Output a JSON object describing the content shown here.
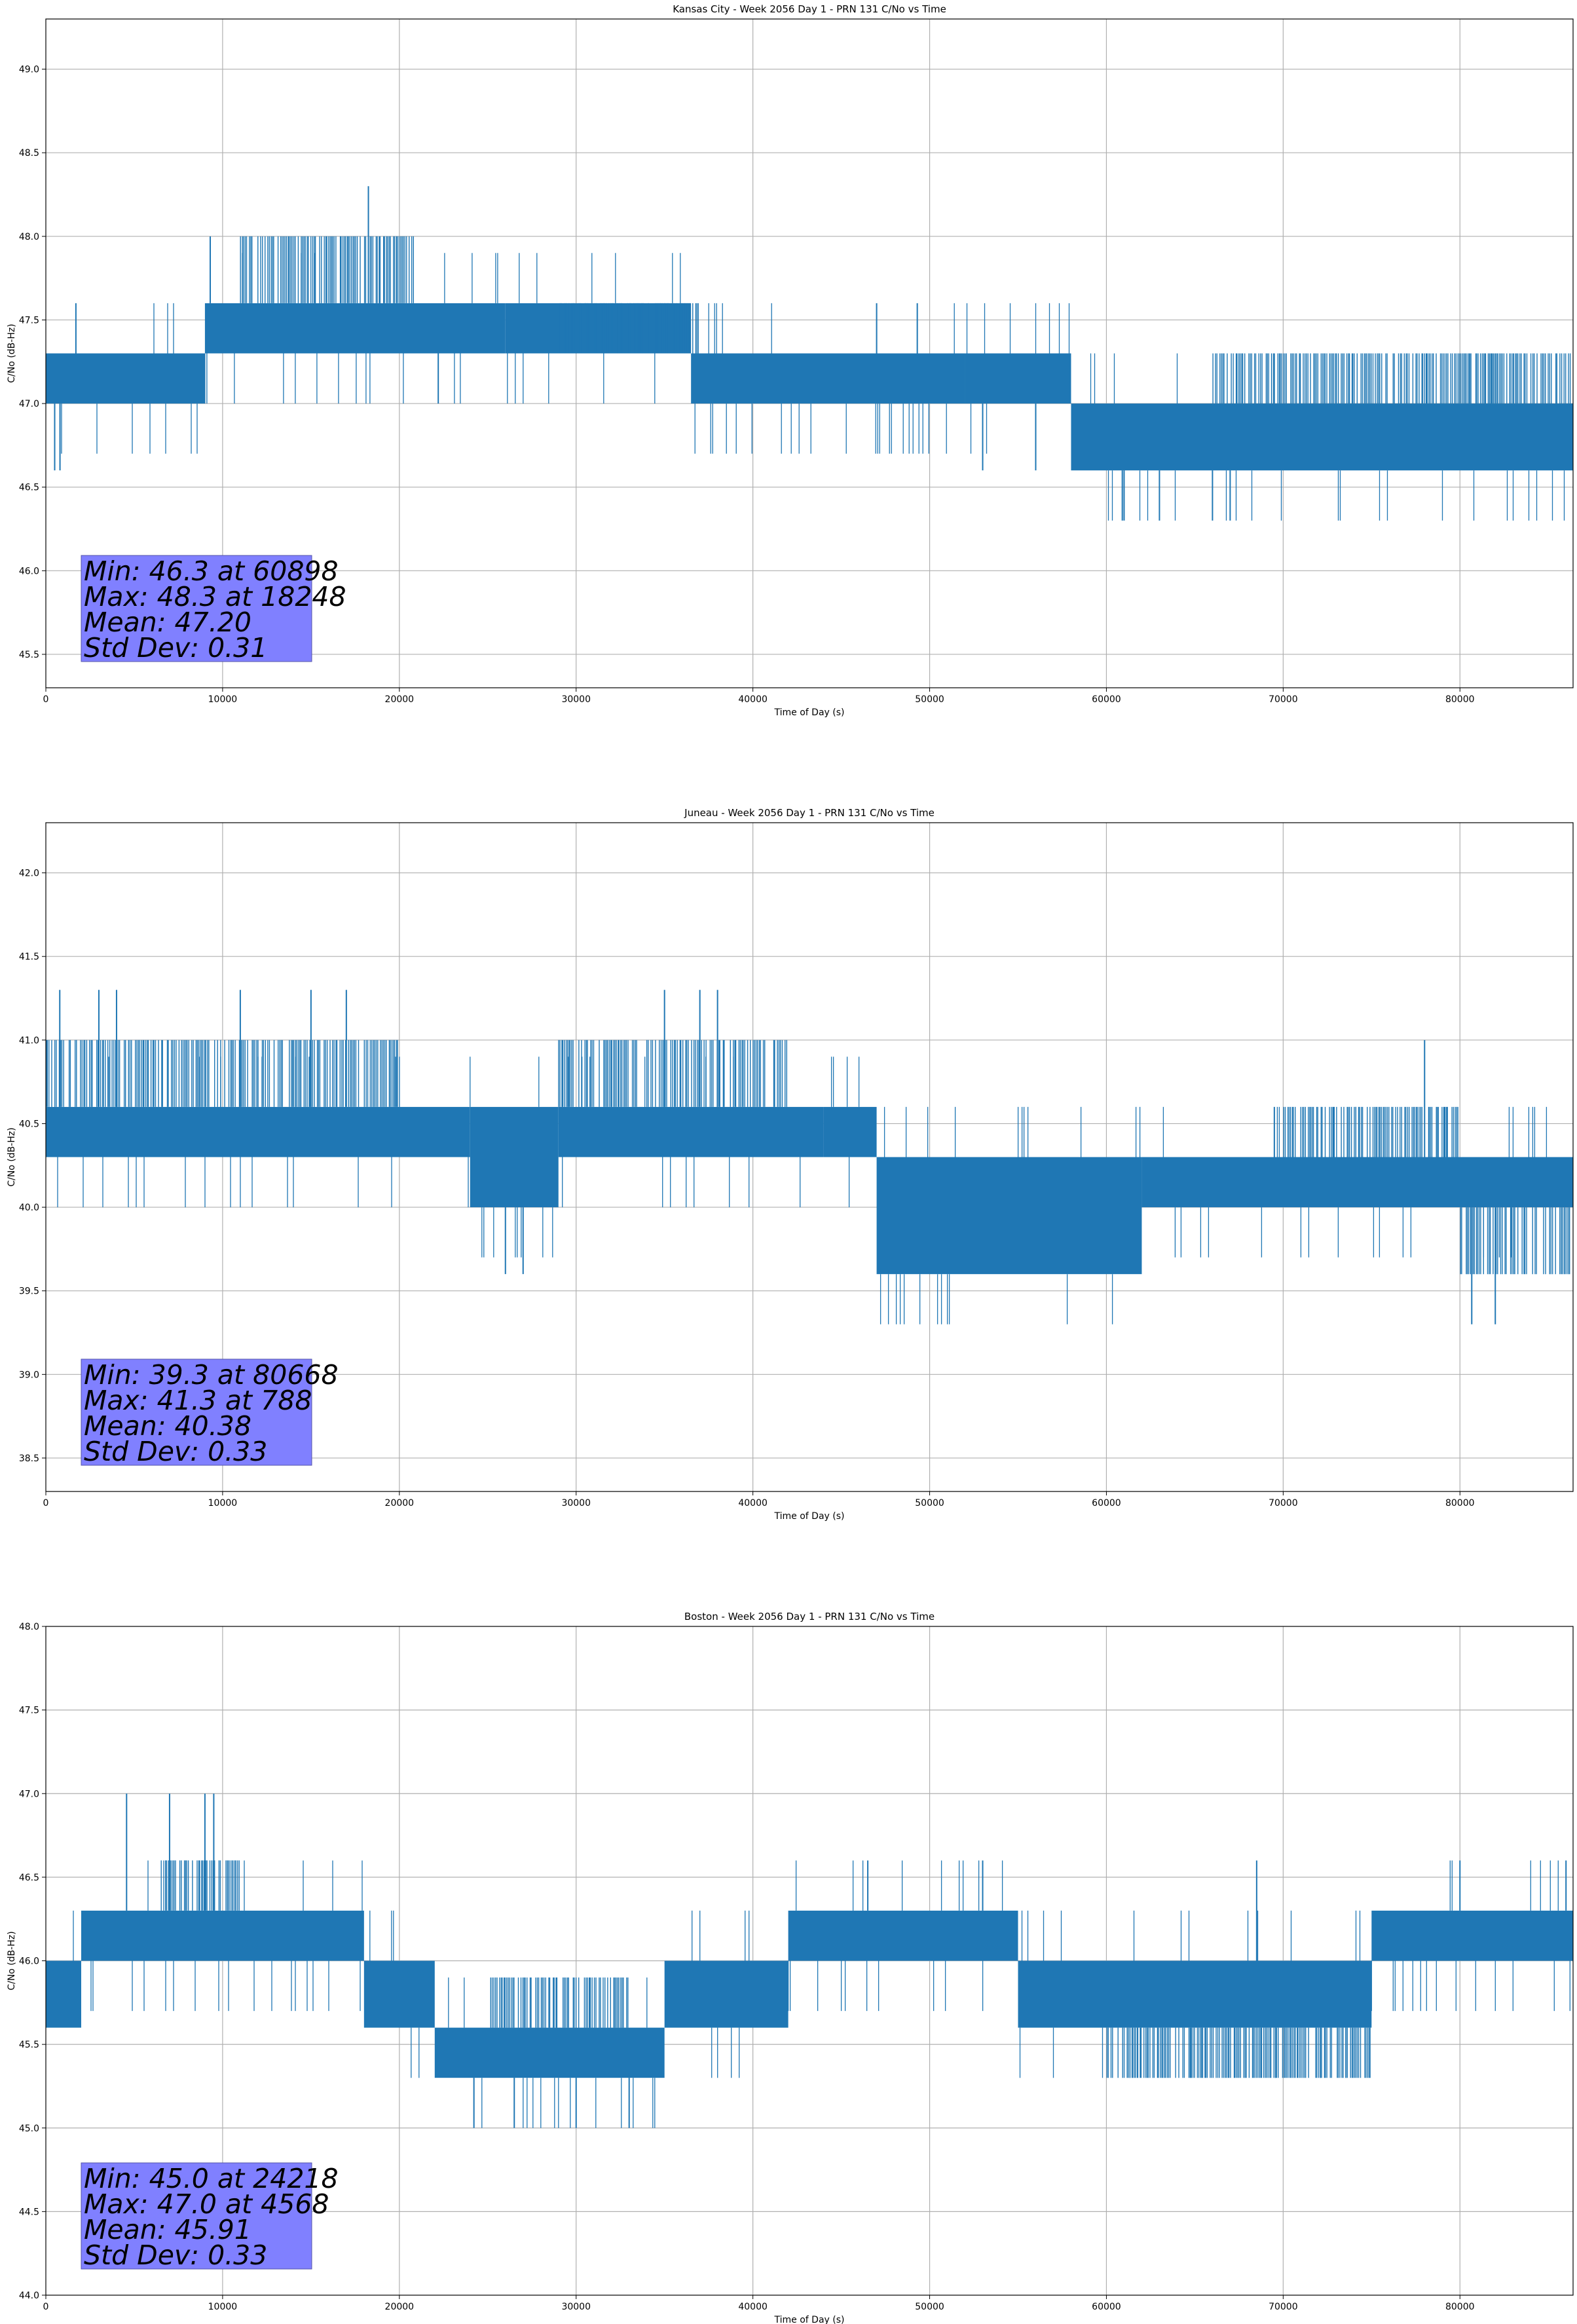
{
  "colors": {
    "series": "#1f77b4",
    "grid": "#b0b0b0",
    "statbox": "#8080ff"
  },
  "chart_data": [
    {
      "type": "line",
      "title": "Kansas City - Week 2056 Day 1 - PRN 131 C/No vs Time",
      "xlabel": "Time of Day (s)",
      "ylabel": "C/No (dB-Hz)",
      "xlim": [
        0,
        86400
      ],
      "ylim": [
        45.3,
        49.3
      ],
      "xticks": [
        "0",
        "10000",
        "20000",
        "30000",
        "40000",
        "50000",
        "60000",
        "70000",
        "80000"
      ],
      "yticks": [
        "45.5",
        "46.0",
        "46.5",
        "47.0",
        "47.5",
        "48.0",
        "48.5",
        "49.0"
      ],
      "grid": true,
      "series": [
        {
          "band_segments": [
            {
              "x": [
                0,
                9000
              ],
              "y": [
                47.0,
                47.3
              ]
            },
            {
              "x": [
                9000,
                26000
              ],
              "y": [
                47.3,
                47.6
              ]
            },
            {
              "x": [
                26000,
                36500
              ],
              "y": [
                47.3,
                47.6
              ]
            },
            {
              "x": [
                36500,
                52000
              ],
              "y": [
                47.0,
                47.3
              ]
            },
            {
              "x": [
                52000,
                58000
              ],
              "y": [
                47.0,
                47.3
              ]
            },
            {
              "x": [
                58000,
                86400
              ],
              "y": [
                46.6,
                47.0
              ]
            }
          ],
          "secondary_band_segments": [
            {
              "x": [
                11000,
                21000
              ],
              "y": [
                47.6,
                48.0
              ]
            },
            {
              "x": [
                29000,
                37000
              ],
              "y": [
                47.3,
                47.6
              ]
            },
            {
              "x": [
                66000,
                86400
              ],
              "y": [
                47.0,
                47.3
              ]
            }
          ],
          "spikes": [
            [
              18248,
              48.3
            ],
            [
              9300,
              48.0
            ],
            [
              1700,
              47.6
            ],
            [
              47000,
              47.6
            ],
            [
              49300,
              47.6
            ],
            [
              61000,
              46.3
            ],
            [
              63000,
              46.3
            ],
            [
              66000,
              46.3
            ],
            [
              67000,
              46.3
            ],
            [
              60898,
              46.3
            ],
            [
              500,
              46.6
            ],
            [
              800,
              46.6
            ],
            [
              22200,
              47.0
            ],
            [
              53000,
              46.6
            ],
            [
              56000,
              46.6
            ]
          ]
        }
      ],
      "annotation": [
        "Min: 46.3 at 60898",
        "Max: 48.3 at 18248",
        "Mean: 47.20",
        "Std Dev: 0.31"
      ]
    },
    {
      "type": "line",
      "title": "Juneau - Week 2056 Day 1 - PRN 131 C/No vs Time",
      "xlabel": "Time of Day (s)",
      "ylabel": "C/No (dB-Hz)",
      "xlim": [
        0,
        86400
      ],
      "ylim": [
        38.3,
        42.3
      ],
      "xticks": [
        "0",
        "10000",
        "20000",
        "30000",
        "40000",
        "50000",
        "60000",
        "70000",
        "80000"
      ],
      "yticks": [
        "38.5",
        "39.0",
        "39.5",
        "40.0",
        "40.5",
        "41.0",
        "41.5",
        "42.0"
      ],
      "grid": true,
      "series": [
        {
          "band_segments": [
            {
              "x": [
                0,
                24000
              ],
              "y": [
                40.3,
                40.6
              ]
            },
            {
              "x": [
                24000,
                29000
              ],
              "y": [
                40.0,
                40.6
              ]
            },
            {
              "x": [
                29000,
                44000
              ],
              "y": [
                40.3,
                40.6
              ]
            },
            {
              "x": [
                44000,
                47000
              ],
              "y": [
                40.3,
                40.6
              ]
            },
            {
              "x": [
                47000,
                62000
              ],
              "y": [
                39.6,
                40.3
              ]
            },
            {
              "x": [
                62000,
                86400
              ],
              "y": [
                40.0,
                40.3
              ]
            }
          ],
          "secondary_band_segments": [
            {
              "x": [
                0,
                20000
              ],
              "y": [
                40.6,
                41.0
              ]
            },
            {
              "x": [
                29000,
                42000
              ],
              "y": [
                40.6,
                41.0
              ]
            },
            {
              "x": [
                70000,
                80000
              ],
              "y": [
                40.3,
                40.6
              ]
            },
            {
              "x": [
                80000,
                86400
              ],
              "y": [
                39.6,
                40.0
              ]
            }
          ],
          "spikes": [
            [
              788,
              41.3
            ],
            [
              80668,
              39.3
            ],
            [
              82000,
              39.3
            ],
            [
              3000,
              41.3
            ],
            [
              4000,
              41.3
            ],
            [
              11000,
              41.3
            ],
            [
              15000,
              41.3
            ],
            [
              17000,
              41.3
            ],
            [
              35000,
              41.3
            ],
            [
              37000,
              41.3
            ],
            [
              38000,
              41.3
            ],
            [
              26000,
              39.6
            ],
            [
              27000,
              39.6
            ],
            [
              69500,
              40.6
            ],
            [
              78000,
              41.0
            ]
          ]
        }
      ],
      "annotation": [
        "Min: 39.3 at 80668",
        "Max: 41.3 at 788",
        "Mean: 40.38",
        "Std Dev: 0.33"
      ]
    },
    {
      "type": "line",
      "title": "Boston - Week 2056 Day 1 - PRN 131 C/No vs Time",
      "xlabel": "Time of Day (s)",
      "ylabel": "C/No (dB-Hz)",
      "xlim": [
        0,
        86400
      ],
      "ylim": [
        44.0,
        48.0
      ],
      "xticks": [
        "0",
        "10000",
        "20000",
        "30000",
        "40000",
        "50000",
        "60000",
        "70000",
        "80000"
      ],
      "yticks": [
        "44.0",
        "44.5",
        "45.0",
        "45.5",
        "46.0",
        "46.5",
        "47.0",
        "47.5",
        "48.0"
      ],
      "grid": true,
      "series": [
        {
          "band_segments": [
            {
              "x": [
                0,
                2000
              ],
              "y": [
                45.6,
                46.0
              ]
            },
            {
              "x": [
                2000,
                18000
              ],
              "y": [
                46.0,
                46.3
              ]
            },
            {
              "x": [
                18000,
                22000
              ],
              "y": [
                45.6,
                46.0
              ]
            },
            {
              "x": [
                22000,
                35000
              ],
              "y": [
                45.3,
                45.6
              ]
            },
            {
              "x": [
                35000,
                42000
              ],
              "y": [
                45.6,
                46.0
              ]
            },
            {
              "x": [
                42000,
                55000
              ],
              "y": [
                46.0,
                46.3
              ]
            },
            {
              "x": [
                55000,
                75000
              ],
              "y": [
                45.6,
                46.0
              ]
            },
            {
              "x": [
                75000,
                86400
              ],
              "y": [
                46.0,
                46.3
              ]
            }
          ],
          "secondary_band_segments": [
            {
              "x": [
                6500,
                11000
              ],
              "y": [
                46.3,
                46.6
              ]
            },
            {
              "x": [
                25000,
                33000
              ],
              "y": [
                45.6,
                45.9
              ]
            },
            {
              "x": [
                60000,
                75000
              ],
              "y": [
                45.3,
                45.6
              ]
            }
          ],
          "spikes": [
            [
              4568,
              47.0
            ],
            [
              7000,
              47.0
            ],
            [
              9000,
              47.0
            ],
            [
              9500,
              47.0
            ],
            [
              24218,
              45.0
            ],
            [
              26500,
              45.0
            ],
            [
              30000,
              45.0
            ],
            [
              33000,
              45.0
            ],
            [
              46500,
              46.6
            ],
            [
              53000,
              46.6
            ],
            [
              68500,
              46.6
            ],
            [
              80000,
              46.6
            ],
            [
              86000,
              46.6
            ]
          ]
        }
      ],
      "annotation": [
        "Min: 45.0 at 24218",
        "Max: 47.0 at 4568",
        "Mean: 45.91",
        "Std Dev: 0.33"
      ]
    }
  ]
}
